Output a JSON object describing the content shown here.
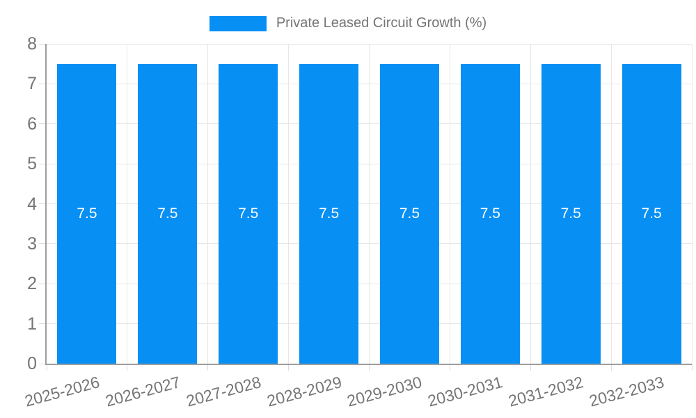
{
  "legend": {
    "label": "Private Leased Circuit Growth (%)"
  },
  "chart_data": {
    "type": "bar",
    "title": "",
    "series_name": "Private Leased Circuit Growth (%)",
    "categories": [
      "2025-2026",
      "2026-2027",
      "2027-2028",
      "2028-2029",
      "2029-2030",
      "2030-2031",
      "2031-2032",
      "2032-2033"
    ],
    "values": [
      7.5,
      7.5,
      7.5,
      7.5,
      7.5,
      7.5,
      7.5,
      7.5
    ],
    "value_labels": [
      "7.5",
      "7.5",
      "7.5",
      "7.5",
      "7.5",
      "7.5",
      "7.5",
      "7.5"
    ],
    "xlabel": "",
    "ylabel": "",
    "ylim": [
      0,
      8
    ],
    "yticks": [
      0,
      1,
      2,
      3,
      4,
      5,
      6,
      7,
      8
    ],
    "grid": true,
    "legend_position": "top",
    "colors": {
      "bar": "#078ff4",
      "value_label": "#ffffff",
      "axis_label": "#757575",
      "grid_line": "#e7e7e7",
      "axis_line": "#9e9e9e",
      "tick": "#dcdcdc",
      "background": "#ffffff"
    }
  }
}
